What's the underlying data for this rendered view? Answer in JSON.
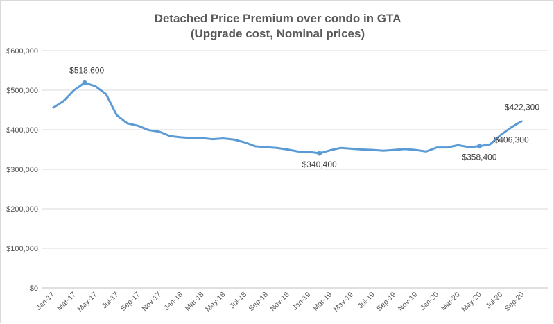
{
  "chart_data": {
    "type": "line",
    "title": "Detached Price Premium over condo in GTA",
    "subtitle": "(Upgrade cost, Nominal prices)",
    "x": [
      "Jan-17",
      "Feb-17",
      "Mar-17",
      "Apr-17",
      "May-17",
      "Jun-17",
      "Jul-17",
      "Aug-17",
      "Sep-17",
      "Oct-17",
      "Nov-17",
      "Dec-17",
      "Jan-18",
      "Feb-18",
      "Mar-18",
      "Apr-18",
      "May-18",
      "Jun-18",
      "Jul-18",
      "Aug-18",
      "Sep-18",
      "Oct-18",
      "Nov-18",
      "Dec-18",
      "Jan-19",
      "Feb-19",
      "Mar-19",
      "Apr-19",
      "May-19",
      "Jun-19",
      "Jul-19",
      "Aug-19",
      "Sep-19",
      "Oct-19",
      "Nov-19",
      "Dec-19",
      "Jan-20",
      "Feb-20",
      "Mar-20",
      "Apr-20",
      "May-20",
      "Jun-20",
      "Jul-20",
      "Aug-20",
      "Sep-20"
    ],
    "values": [
      455000,
      472000,
      500000,
      518600,
      510000,
      490000,
      437000,
      416000,
      410000,
      399000,
      395000,
      384000,
      381000,
      379000,
      379000,
      376000,
      378000,
      375000,
      368000,
      358000,
      356000,
      354000,
      350000,
      345000,
      344000,
      340400,
      348000,
      354000,
      352000,
      350000,
      349000,
      347000,
      349000,
      351000,
      349000,
      345000,
      355000,
      355000,
      361000,
      356000,
      358400,
      363000,
      387000,
      406300,
      422300
    ],
    "data_labels": [
      {
        "index": 3,
        "text": "$518,600"
      },
      {
        "index": 25,
        "text": "$340,400"
      },
      {
        "index": 40,
        "text": "$358,400"
      },
      {
        "index": 43,
        "text": "$406,300"
      },
      {
        "index": 44,
        "text": "$422,300"
      }
    ],
    "reference_line": {
      "value": 520000,
      "color": "#404040"
    },
    "yticks": [
      "$0",
      "$100,000",
      "$200,000",
      "$300,000",
      "$400,000",
      "$500,000",
      "$600,000"
    ],
    "ylim": [
      0,
      600000
    ],
    "xtick_every": 2,
    "grid": true,
    "legend": "none",
    "line_color": "#5b9bd5"
  }
}
